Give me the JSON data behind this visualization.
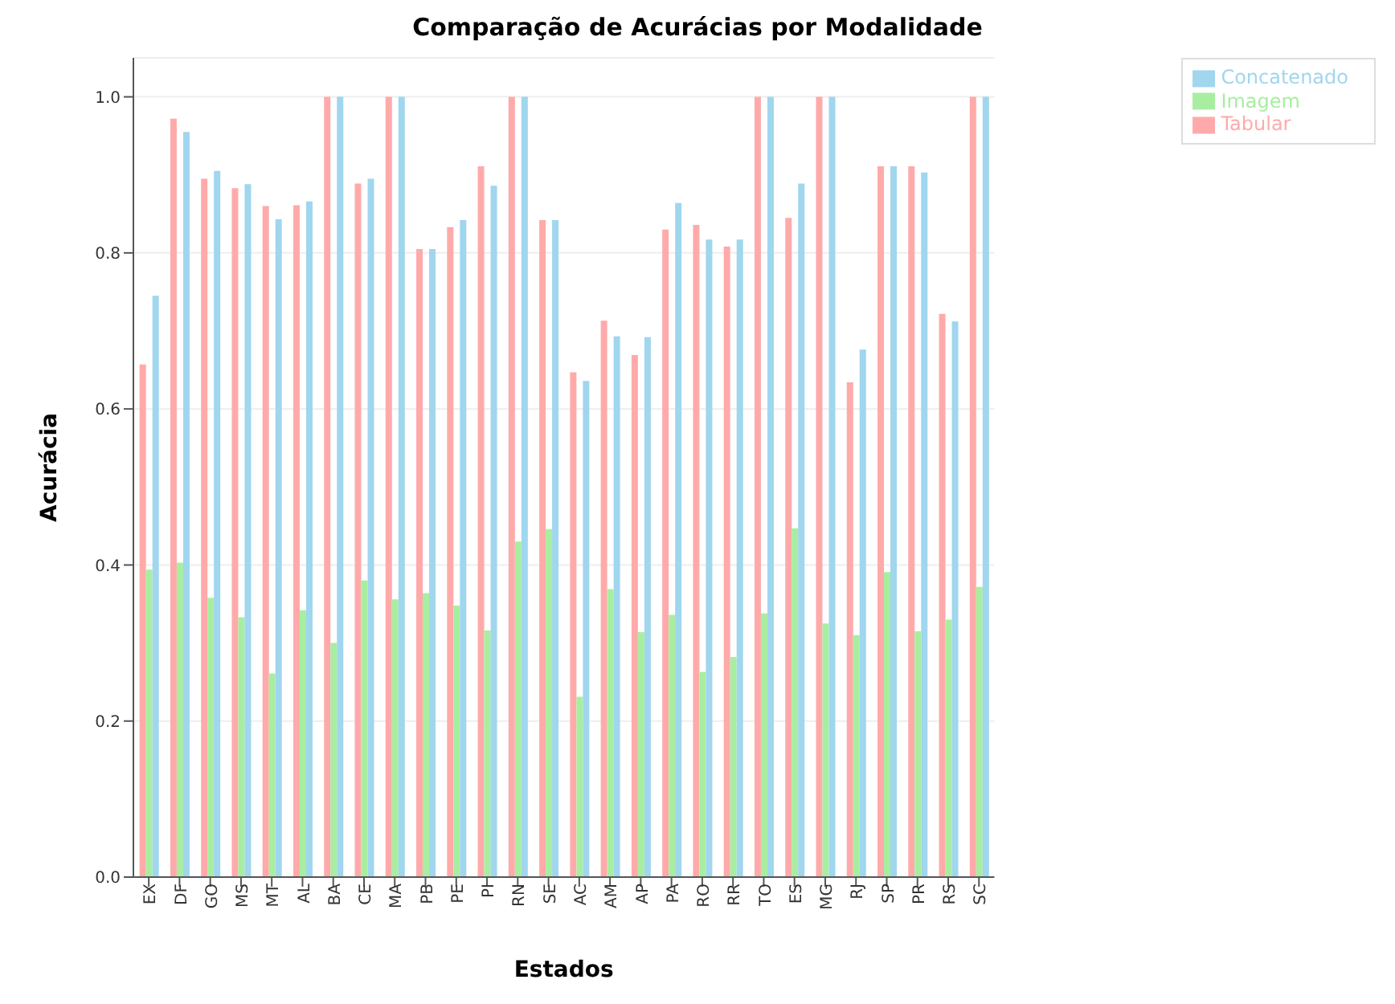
{
  "chart_data": {
    "type": "bar",
    "title": "Comparação de Acurácias por Modalidade",
    "xlabel": "Estados",
    "ylabel": "Acurácia",
    "categories": [
      "EX",
      "DF",
      "GO",
      "MS",
      "MT",
      "AL",
      "BA",
      "CE",
      "MA",
      "PB",
      "PE",
      "PI",
      "RN",
      "SE",
      "AC",
      "AM",
      "AP",
      "PA",
      "RO",
      "RR",
      "TO",
      "ES",
      "MG",
      "RJ",
      "SP",
      "PR",
      "RS",
      "SC"
    ],
    "series": [
      {
        "name": "Tabular",
        "color": "#ffaaaa",
        "values": [
          0.657,
          0.972,
          0.895,
          0.883,
          0.86,
          0.861,
          1.0,
          0.889,
          1.0,
          0.805,
          0.833,
          0.911,
          1.0,
          0.842,
          0.647,
          0.713,
          0.669,
          0.83,
          0.836,
          0.808,
          1.0,
          0.845,
          1.0,
          0.634,
          0.911,
          0.911,
          0.722,
          1.0
        ]
      },
      {
        "name": "Imagem",
        "color": "#a8eea0",
        "values": [
          0.394,
          0.403,
          0.358,
          0.333,
          0.261,
          0.342,
          0.3,
          0.38,
          0.356,
          0.364,
          0.348,
          0.316,
          0.43,
          0.446,
          0.231,
          0.369,
          0.314,
          0.336,
          0.263,
          0.282,
          0.338,
          0.447,
          0.325,
          0.31,
          0.391,
          0.315,
          0.33,
          0.372
        ]
      },
      {
        "name": "Concatenado",
        "color": "#a0d6ee",
        "values": [
          0.745,
          0.955,
          0.905,
          0.888,
          0.843,
          0.866,
          1.0,
          0.895,
          1.0,
          0.805,
          0.842,
          0.886,
          1.0,
          0.842,
          0.636,
          0.693,
          0.692,
          0.864,
          0.817,
          0.817,
          1.0,
          0.889,
          1.0,
          0.676,
          0.911,
          0.903,
          0.712,
          1.0
        ]
      }
    ],
    "ylim": [
      0,
      1.05
    ],
    "yticks": [
      {
        "value": 0,
        "label": "0.0"
      },
      {
        "value": 0.2,
        "label": "0.2"
      },
      {
        "value": 0.4,
        "label": "0.4"
      },
      {
        "value": 0.6,
        "label": "0.6"
      },
      {
        "value": 0.8,
        "label": "0.8"
      },
      {
        "value": 1,
        "label": "1.0"
      }
    ],
    "grid": "y",
    "legend": "top right"
  }
}
